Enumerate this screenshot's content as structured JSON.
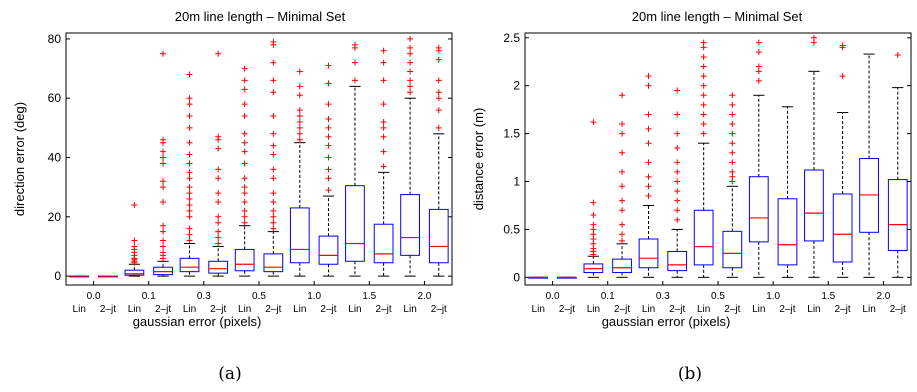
{
  "chart_data": [
    {
      "type": "box",
      "title": "20m line length – Minimal Set",
      "xlabel": "gaussian error (pixels)",
      "ylabel": "direction error (deg)",
      "ylim": [
        -3,
        82
      ],
      "yticks": [
        0,
        20,
        40,
        60,
        80
      ],
      "yticklabels": [
        "0",
        "20",
        "40",
        "60",
        "80"
      ],
      "groups": [
        "0.0",
        "0.1",
        "0.3",
        "0.5",
        "1.0",
        "1.5",
        "2.0"
      ],
      "methods": [
        "Lin",
        "2–jt"
      ],
      "caption": "(a)",
      "boxes": [
        {
          "group": "0.0",
          "method": "Lin",
          "whislo": 0,
          "q1": 0,
          "med": 0,
          "q3": 0,
          "whishi": 0,
          "fliers": []
        },
        {
          "group": "0.0",
          "method": "2–jt",
          "whislo": 0,
          "q1": 0,
          "med": 0,
          "q3": 0,
          "whishi": 0,
          "fliers": []
        },
        {
          "group": "0.1",
          "method": "Lin",
          "whislo": 0,
          "q1": 0.3,
          "med": 0.8,
          "q3": 2,
          "whishi": 4,
          "fliers": [
            4.5,
            5,
            5.5,
            6,
            7,
            8,
            9,
            10,
            12,
            24
          ]
        },
        {
          "group": "0.1",
          "method": "2–jt",
          "whislo": 0,
          "q1": 0.5,
          "med": 1.5,
          "q3": 3,
          "whishi": 5,
          "fliers": [
            6,
            7,
            8,
            10,
            12,
            15,
            17,
            25,
            30,
            32,
            38,
            40,
            42,
            45,
            46,
            75
          ]
        },
        {
          "group": "0.3",
          "method": "Lin",
          "whislo": 0,
          "q1": 1.5,
          "med": 3,
          "q3": 6,
          "whishi": 11,
          "fliers": [
            12,
            14,
            16,
            20,
            22,
            24,
            26,
            28,
            30,
            33,
            35,
            38,
            41,
            45,
            50,
            54,
            58,
            60,
            68
          ]
        },
        {
          "group": "0.3",
          "method": "2–jt",
          "whislo": 0,
          "q1": 1,
          "med": 2.5,
          "q3": 5,
          "whishi": 10,
          "fliers": [
            11,
            13,
            15,
            18,
            20,
            25,
            28,
            33,
            36,
            43,
            46,
            47,
            75
          ]
        },
        {
          "group": "0.5",
          "method": "Lin",
          "whislo": 0,
          "q1": 1.8,
          "med": 4,
          "q3": 9,
          "whishi": 17,
          "fliers": [
            18,
            20,
            22,
            25,
            28,
            30,
            33,
            38,
            42,
            45,
            48,
            54,
            58,
            63,
            66,
            70
          ]
        },
        {
          "group": "0.5",
          "method": "2–jt",
          "whislo": 0,
          "q1": 1.5,
          "med": 3,
          "q3": 7.5,
          "whishi": 15,
          "fliers": [
            16,
            18,
            20,
            22,
            25,
            28,
            33,
            36,
            41,
            44,
            48,
            54,
            62,
            66,
            72,
            78,
            79
          ]
        },
        {
          "group": "1.0",
          "method": "Lin",
          "whislo": 0,
          "q1": 4.5,
          "med": 9,
          "q3": 23,
          "whishi": 45,
          "fliers": [
            46,
            48,
            50,
            52,
            54,
            56,
            61,
            64,
            69
          ]
        },
        {
          "group": "1.0",
          "method": "2–jt",
          "whislo": 0,
          "q1": 4,
          "med": 7,
          "q3": 13.5,
          "whishi": 27,
          "fliers": [
            29,
            33,
            36,
            40,
            44,
            47,
            50,
            53,
            58,
            65,
            71
          ]
        },
        {
          "group": "1.5",
          "method": "Lin",
          "whislo": 0,
          "q1": 5,
          "med": 11,
          "q3": 30.5,
          "whishi": 64,
          "fliers": [
            66,
            72,
            77,
            78
          ]
        },
        {
          "group": "1.5",
          "method": "2–jt",
          "whislo": 0,
          "q1": 4.5,
          "med": 7.5,
          "q3": 17.5,
          "whishi": 35,
          "fliers": [
            37,
            42,
            47,
            50,
            52,
            58,
            66,
            72,
            76
          ]
        },
        {
          "group": "2.0",
          "method": "Lin",
          "whislo": 0,
          "q1": 7,
          "med": 13,
          "q3": 27.5,
          "whishi": 60,
          "fliers": [
            62,
            64,
            66,
            69,
            72,
            75,
            77,
            80
          ]
        },
        {
          "group": "2.0",
          "method": "2–jt",
          "whislo": 0,
          "q1": 4.5,
          "med": 10,
          "q3": 22.5,
          "whishi": 48,
          "fliers": [
            50,
            56,
            60,
            62,
            66,
            73,
            76,
            77
          ]
        }
      ]
    },
    {
      "type": "box",
      "title": "20m line length – Minimal Set",
      "xlabel": "gaussian error (pixels)",
      "ylabel": "distance error (m)",
      "ylim": [
        -0.08,
        2.55
      ],
      "yticks": [
        0,
        0.5,
        1,
        1.5,
        2,
        2.5
      ],
      "yticklabels": [
        "0",
        "0.5",
        "1",
        "1.5",
        "2",
        "2.5"
      ],
      "groups": [
        "0.0",
        "0.1",
        "0.3",
        "0.5",
        "1.0",
        "1.5",
        "2.0"
      ],
      "methods": [
        "Lin",
        "2–jt"
      ],
      "caption": "(b)",
      "boxes": [
        {
          "group": "0.0",
          "method": "Lin",
          "whislo": 0,
          "q1": 0,
          "med": 0,
          "q3": 0,
          "whishi": 0,
          "fliers": []
        },
        {
          "group": "0.0",
          "method": "2–jt",
          "whislo": 0,
          "q1": 0,
          "med": 0,
          "q3": 0,
          "whishi": 0,
          "fliers": []
        },
        {
          "group": "0.1",
          "method": "Lin",
          "whislo": 0,
          "q1": 0.05,
          "med": 0.09,
          "q3": 0.14,
          "whishi": 0.22,
          "fliers": [
            0.24,
            0.27,
            0.3,
            0.35,
            0.4,
            0.45,
            0.5,
            0.55,
            0.65,
            0.78,
            1.62
          ]
        },
        {
          "group": "0.1",
          "method": "2–jt",
          "whislo": 0,
          "q1": 0.05,
          "med": 0.1,
          "q3": 0.19,
          "whishi": 0.35,
          "fliers": [
            0.38,
            0.45,
            0.55,
            0.7,
            0.8,
            0.95,
            1.1,
            1.3,
            1.5,
            1.6,
            1.9
          ]
        },
        {
          "group": "0.3",
          "method": "Lin",
          "whislo": 0,
          "q1": 0.1,
          "med": 0.2,
          "q3": 0.4,
          "whishi": 0.75,
          "fliers": [
            0.85,
            0.95,
            1.05,
            1.2,
            1.4,
            1.55,
            1.7,
            2.0,
            2.1
          ]
        },
        {
          "group": "0.3",
          "method": "2–jt",
          "whislo": 0,
          "q1": 0.07,
          "med": 0.13,
          "q3": 0.27,
          "whishi": 0.5,
          "fliers": [
            0.6,
            0.7,
            0.8,
            0.9,
            1.0,
            1.1,
            1.2,
            1.35,
            1.5,
            1.7,
            1.95
          ]
        },
        {
          "group": "0.5",
          "method": "Lin",
          "whislo": 0,
          "q1": 0.13,
          "med": 0.32,
          "q3": 0.7,
          "whishi": 1.4,
          "fliers": [
            1.5,
            1.6,
            1.7,
            1.8,
            1.9,
            2.0,
            2.1,
            2.2,
            2.3,
            2.4,
            2.45
          ]
        },
        {
          "group": "0.5",
          "method": "2–jt",
          "whislo": 0,
          "q1": 0.1,
          "med": 0.25,
          "q3": 0.48,
          "whishi": 0.95,
          "fliers": [
            1.0,
            1.05,
            1.1,
            1.2,
            1.3,
            1.4,
            1.5,
            1.6,
            1.7,
            1.8,
            1.9
          ]
        },
        {
          "group": "1.0",
          "method": "Lin",
          "whislo": 0,
          "q1": 0.37,
          "med": 0.62,
          "q3": 1.05,
          "whishi": 1.9,
          "fliers": [
            2.05,
            2.15,
            2.2,
            2.35,
            2.45
          ]
        },
        {
          "group": "1.0",
          "method": "2–jt",
          "whislo": 0,
          "q1": 0.13,
          "med": 0.34,
          "q3": 0.82,
          "whishi": 1.78,
          "fliers": []
        },
        {
          "group": "1.5",
          "method": "Lin",
          "whislo": 0,
          "q1": 0.38,
          "med": 0.67,
          "q3": 1.12,
          "whishi": 2.15,
          "fliers": [
            2.45,
            2.5
          ]
        },
        {
          "group": "1.5",
          "method": "2–jt",
          "whislo": 0,
          "q1": 0.16,
          "med": 0.45,
          "q3": 0.87,
          "whishi": 1.72,
          "fliers": [
            2.1,
            2.4,
            2.42
          ]
        },
        {
          "group": "2.0",
          "method": "Lin",
          "whislo": 0,
          "q1": 0.47,
          "med": 0.86,
          "q3": 1.24,
          "whishi": 2.33,
          "fliers": []
        },
        {
          "group": "2.0",
          "method": "2–jt",
          "whislo": 0,
          "q1": 0.28,
          "med": 0.55,
          "q3": 1.02,
          "whishi": 1.98,
          "fliers": [
            2.32
          ]
        }
      ]
    }
  ],
  "colors": {
    "box": "#0000ff",
    "median": "#ff0000",
    "flier": "#ff0000",
    "whisker": "#000000"
  }
}
